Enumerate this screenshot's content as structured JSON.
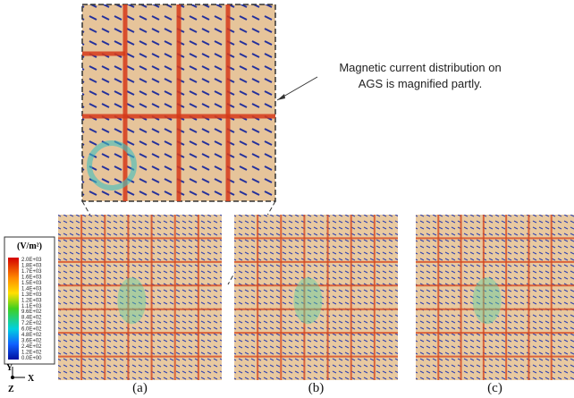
{
  "annotation": {
    "lines": [
      "Magnetic current distribution on",
      "AGS is magnified partly."
    ]
  },
  "colorbar": {
    "unit": "(V/m²)",
    "labels": [
      "2.0E+03",
      "1.8E+03",
      "1.7E+03",
      "1.6E+03",
      "1.5E+03",
      "1.4E+03",
      "1.3E+03",
      "1.2E+03",
      "1.1E+03",
      "9.6E+02",
      "8.4E+02",
      "7.2E+02",
      "6.0E+02",
      "4.8E+02",
      "3.6E+02",
      "2.4E+02",
      "1.2E+02",
      "0.0E+00"
    ]
  },
  "axes": {
    "y": "Y",
    "x": "X",
    "z": "Z"
  },
  "panels": [
    {
      "label": "(a)"
    },
    {
      "label": "(b)"
    },
    {
      "label": "(c)"
    }
  ]
}
